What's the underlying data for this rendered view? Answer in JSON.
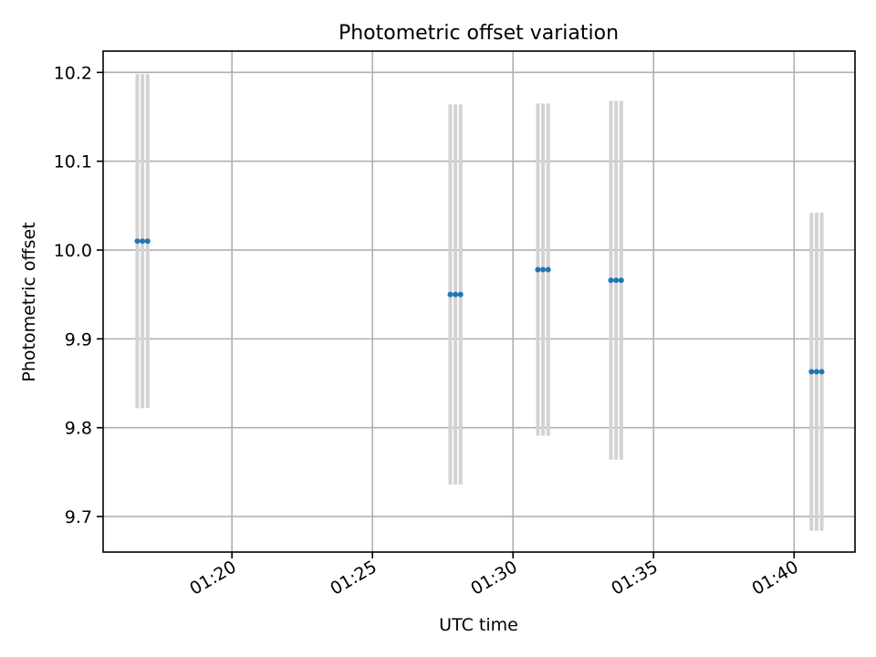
{
  "chart_data": {
    "type": "scatter",
    "title": "Photometric offset variation",
    "xlabel": "UTC time",
    "ylabel": "Photometric offset",
    "xlim": [
      "01:15:25",
      "01:42:10"
    ],
    "ylim": [
      9.66,
      10.224
    ],
    "xticks": [
      "01:20",
      "01:25",
      "01:30",
      "01:35",
      "01:40"
    ],
    "yticks": [
      9.7,
      9.8,
      9.9,
      10.0,
      10.1,
      10.2
    ],
    "grid": true,
    "marker_color": "#1f77b4",
    "errorbar_color": "#d3d3d3",
    "points": [
      {
        "x": "01:16:38",
        "y": 10.01,
        "err": 0.188
      },
      {
        "x": "01:16:49",
        "y": 10.01,
        "err": 0.188
      },
      {
        "x": "01:17:00",
        "y": 10.01,
        "err": 0.188
      },
      {
        "x": "01:27:46",
        "y": 9.95,
        "err": 0.214
      },
      {
        "x": "01:27:57",
        "y": 9.95,
        "err": 0.214
      },
      {
        "x": "01:28:08",
        "y": 9.95,
        "err": 0.214
      },
      {
        "x": "01:30:53",
        "y": 9.978,
        "err": 0.187
      },
      {
        "x": "01:31:04",
        "y": 9.978,
        "err": 0.187
      },
      {
        "x": "01:31:15",
        "y": 9.978,
        "err": 0.187
      },
      {
        "x": "01:33:29",
        "y": 9.966,
        "err": 0.202
      },
      {
        "x": "01:33:40",
        "y": 9.966,
        "err": 0.202
      },
      {
        "x": "01:33:51",
        "y": 9.966,
        "err": 0.202
      },
      {
        "x": "01:40:37",
        "y": 9.863,
        "err": 0.179
      },
      {
        "x": "01:40:48",
        "y": 9.863,
        "err": 0.179
      },
      {
        "x": "01:40:59",
        "y": 9.863,
        "err": 0.179
      }
    ]
  }
}
